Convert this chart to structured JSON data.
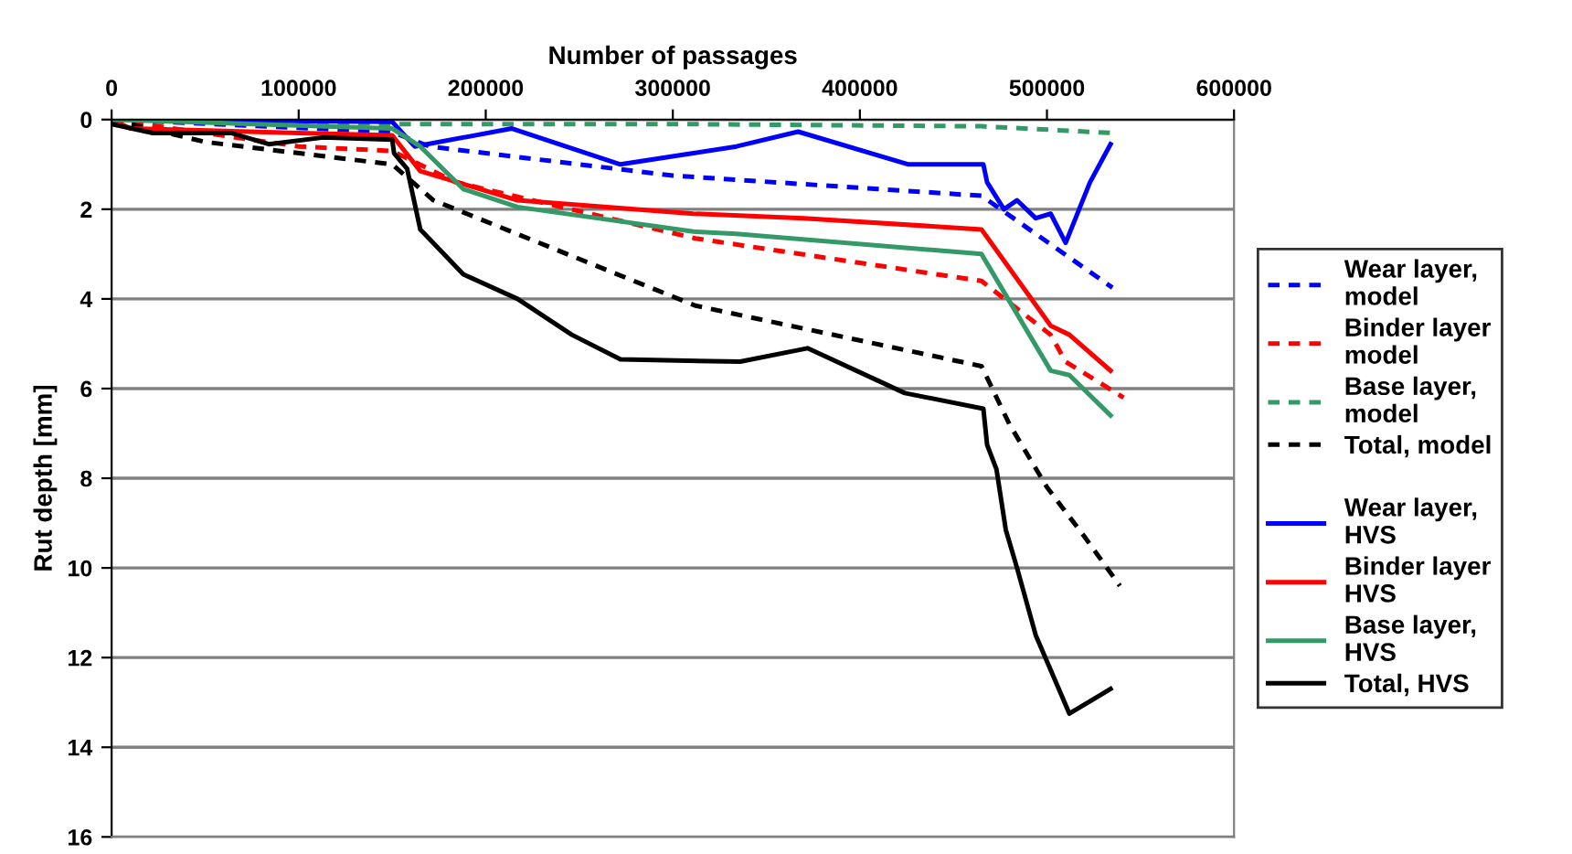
{
  "chart_data": {
    "type": "line",
    "xlabel": "Number of passages",
    "ylabel": "Rut depth [mm]",
    "xlim": [
      0,
      600000
    ],
    "xticks": [
      0,
      100000,
      200000,
      300000,
      400000,
      500000,
      600000
    ],
    "ylim": [
      16,
      0
    ],
    "yticks": [
      0,
      2,
      4,
      6,
      8,
      10,
      12,
      14,
      16
    ],
    "grid": "y",
    "legend": "right",
    "marker": "none",
    "series": [
      {
        "name": "Wear layer,\nmodel",
        "color": "#0000ff",
        "line_style": "dashed",
        "x": [
          0,
          150000,
          170000,
          300000,
          465000,
          535000
        ],
        "values": [
          0,
          0.28,
          0.6,
          1.25,
          1.7,
          3.75
        ]
      },
      {
        "name": "Binder layer\nmodel",
        "color": "#ff0000",
        "line_style": "dashed",
        "x": [
          0,
          100000,
          150000,
          184000,
          312000,
          465000,
          502000,
          510000,
          541000
        ],
        "values": [
          0,
          0.6,
          0.7,
          1.4,
          2.65,
          3.6,
          4.8,
          5.4,
          6.2
        ]
      },
      {
        "name": "Base layer,\nmodel",
        "color": "#339966",
        "line_style": "dashed",
        "x": [
          0,
          150000,
          300000,
          465000,
          535000
        ],
        "values": [
          0,
          0.1,
          0.1,
          0.15,
          0.3
        ]
      },
      {
        "name": "Total, model",
        "color": "#000000",
        "line_style": "dashed",
        "x": [
          0,
          50000,
          150000,
          172000,
          312000,
          465000,
          480000,
          500000,
          520000,
          539000
        ],
        "values": [
          0,
          0.5,
          1.0,
          1.8,
          4.15,
          5.5,
          6.8,
          8.2,
          9.3,
          10.4
        ]
      },
      {
        "name": "Wear layer,\nHVS",
        "color": "#0000ff",
        "line_style": "solid",
        "x": [
          0,
          150000,
          162000,
          214000,
          272000,
          311000,
          334000,
          367000,
          426000,
          466000,
          468000,
          477000,
          484000,
          494000,
          502000,
          510000,
          523000,
          534000
        ],
        "values": [
          0,
          0.05,
          0.6,
          0.2,
          1.0,
          0.75,
          0.6,
          0.27,
          1.0,
          1.0,
          1.4,
          2.0,
          1.8,
          2.2,
          2.1,
          2.75,
          1.4,
          0.55
        ]
      },
      {
        "name": "Binder layer\nHVS",
        "color": "#ff0000",
        "line_style": "solid",
        "x": [
          0,
          10000,
          100000,
          150000,
          165000,
          217000,
          311000,
          370000,
          465000,
          502000,
          512000,
          534000
        ],
        "values": [
          0,
          0.2,
          0.3,
          0.35,
          1.15,
          1.8,
          2.1,
          2.2,
          2.45,
          4.6,
          4.8,
          5.6
        ]
      },
      {
        "name": "Base layer,\nHVS",
        "color": "#339966",
        "line_style": "solid",
        "x": [
          0,
          150000,
          165000,
          188000,
          217000,
          311000,
          334000,
          465000,
          502000,
          512000,
          534000
        ],
        "values": [
          0,
          0.2,
          0.6,
          1.55,
          1.95,
          2.5,
          2.55,
          3.0,
          5.6,
          5.7,
          6.6
        ]
      },
      {
        "name": "Total, HVS",
        "color": "#000000",
        "line_style": "solid",
        "x": [
          0,
          22000,
          64000,
          84000,
          113000,
          150000,
          151000,
          158000,
          165000,
          188000,
          217000,
          246000,
          272000,
          336000,
          372000,
          424000,
          466000,
          468000,
          473000,
          478000,
          484000,
          494000,
          512000,
          534000
        ],
        "values": [
          0.1,
          0.3,
          0.3,
          0.55,
          0.4,
          0.45,
          0.75,
          1.1,
          2.45,
          3.45,
          4.0,
          4.8,
          5.35,
          5.4,
          5.1,
          6.1,
          6.45,
          7.25,
          7.8,
          9.15,
          10.0,
          11.5,
          13.25,
          12.7
        ]
      }
    ]
  }
}
